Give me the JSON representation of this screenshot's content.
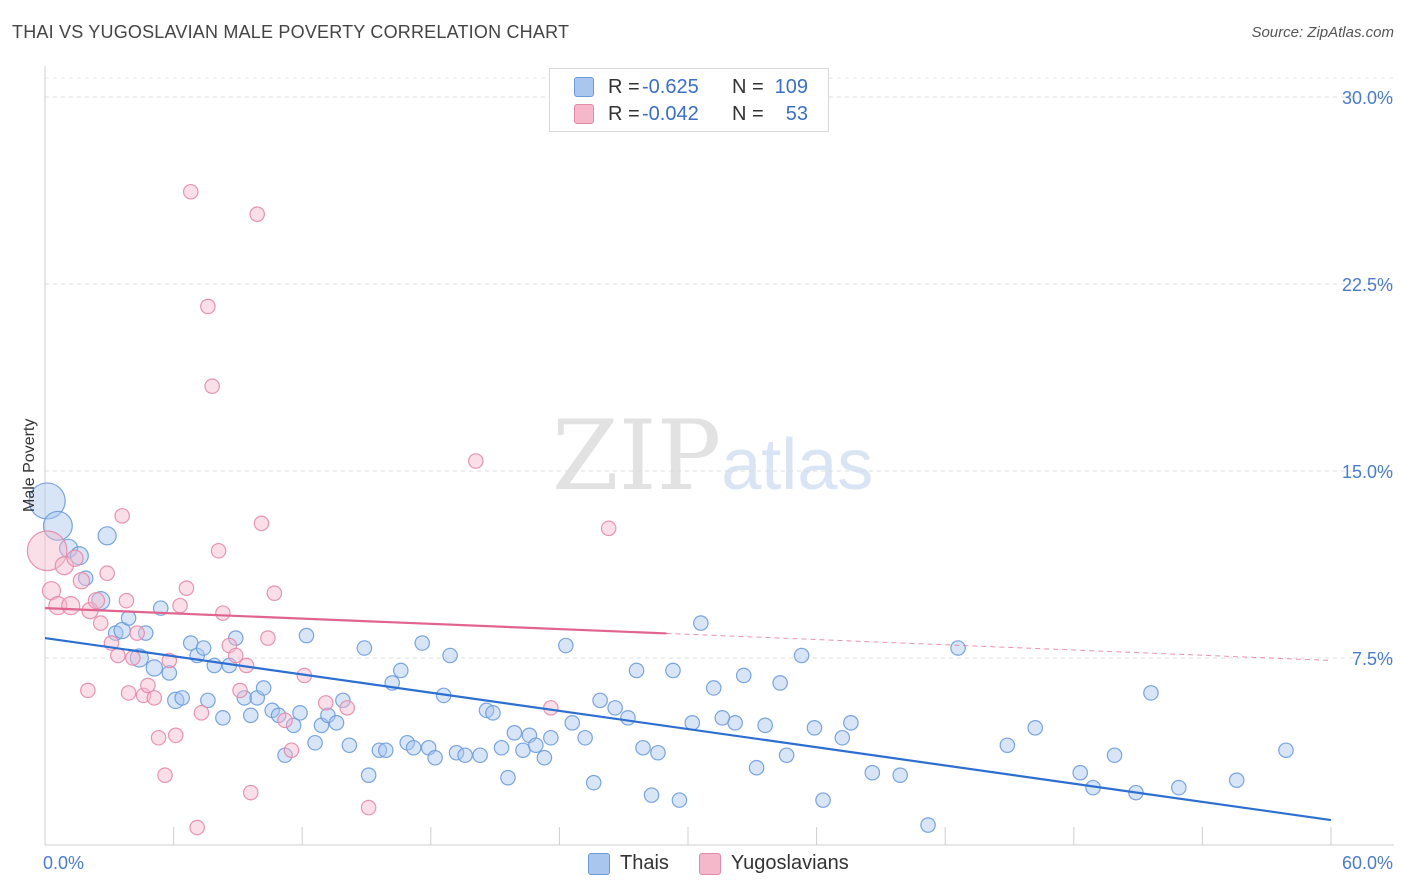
{
  "title": "THAI VS YUGOSLAVIAN MALE POVERTY CORRELATION CHART",
  "source": "Source: ZipAtlas.com",
  "watermark": {
    "zip": "ZIP",
    "atlas": "atlas"
  },
  "legend": {
    "rows": [
      {
        "r_label": "R =",
        "r_value": "-0.625",
        "n_label": "N =",
        "n_value": "109",
        "color": "#a9c6ee"
      },
      {
        "r_label": "R =",
        "r_value": "-0.042",
        "n_label": "N =",
        "n_value": "53",
        "color": "#f5b8cb"
      }
    ]
  },
  "bottom_legend": [
    {
      "label": "Thais",
      "color": "#a9c6ee"
    },
    {
      "label": "Yugoslavians",
      "color": "#f5b8cb"
    }
  ],
  "chart_data": {
    "type": "scatter",
    "xlabel": "",
    "ylabel": "Male Poverty",
    "xlim": [
      0,
      60
    ],
    "ylim": [
      0,
      30
    ],
    "x_tick_labels": [
      "0.0%",
      "60.0%"
    ],
    "y_ticks": [
      7.5,
      15.0,
      22.5,
      30.0
    ],
    "y_tick_labels": [
      "7.5%",
      "15.0%",
      "22.5%",
      "30.0%"
    ],
    "grid": true,
    "series": [
      {
        "name": "Thais",
        "color": "#a9c6ee",
        "stroke": "#6b9bdc",
        "trend": {
          "x": [
            0,
            60
          ],
          "y": [
            8.3,
            1.0
          ],
          "color": "#2c6fd1",
          "dashed_from": null
        },
        "points": [
          [
            0.1,
            13.8,
            2.0
          ],
          [
            0.6,
            12.8,
            1.6
          ],
          [
            1.1,
            11.9,
            1.0
          ],
          [
            1.6,
            11.6,
            1.0
          ],
          [
            1.9,
            10.7,
            0.8
          ],
          [
            2.6,
            9.8,
            1.0
          ],
          [
            2.9,
            12.4,
            1.0
          ],
          [
            3.3,
            8.5,
            0.8
          ],
          [
            3.6,
            8.6,
            0.9
          ],
          [
            3.9,
            9.1,
            0.8
          ],
          [
            4.4,
            7.5,
            1.0
          ],
          [
            4.7,
            8.5,
            0.8
          ],
          [
            5.1,
            7.1,
            0.9
          ],
          [
            5.4,
            9.5,
            0.8
          ],
          [
            5.8,
            6.9,
            0.8
          ],
          [
            6.1,
            5.8,
            0.9
          ],
          [
            6.4,
            5.9,
            0.8
          ],
          [
            6.8,
            8.1,
            0.8
          ],
          [
            7.1,
            7.6,
            0.8
          ],
          [
            7.4,
            7.9,
            0.8
          ],
          [
            7.6,
            5.8,
            0.8
          ],
          [
            7.9,
            7.2,
            0.8
          ],
          [
            8.3,
            5.1,
            0.8
          ],
          [
            8.6,
            7.2,
            0.8
          ],
          [
            8.9,
            8.3,
            0.8
          ],
          [
            9.3,
            5.9,
            0.8
          ],
          [
            9.6,
            5.2,
            0.8
          ],
          [
            9.9,
            5.9,
            0.8
          ],
          [
            10.2,
            6.3,
            0.8
          ],
          [
            10.6,
            5.4,
            0.8
          ],
          [
            10.9,
            5.2,
            0.8
          ],
          [
            11.2,
            3.6,
            0.8
          ],
          [
            11.6,
            4.8,
            0.8
          ],
          [
            11.9,
            5.3,
            0.8
          ],
          [
            12.2,
            8.4,
            0.8
          ],
          [
            12.6,
            4.1,
            0.8
          ],
          [
            12.9,
            4.8,
            0.8
          ],
          [
            13.2,
            5.2,
            0.8
          ],
          [
            13.6,
            4.9,
            0.8
          ],
          [
            13.9,
            5.8,
            0.8
          ],
          [
            14.2,
            4.0,
            0.8
          ],
          [
            14.9,
            7.9,
            0.8
          ],
          [
            15.1,
            2.8,
            0.8
          ],
          [
            15.6,
            3.8,
            0.8
          ],
          [
            15.9,
            3.8,
            0.8
          ],
          [
            16.2,
            6.5,
            0.8
          ],
          [
            16.6,
            7.0,
            0.8
          ],
          [
            16.9,
            4.1,
            0.8
          ],
          [
            17.2,
            3.9,
            0.8
          ],
          [
            17.6,
            8.1,
            0.8
          ],
          [
            17.9,
            3.9,
            0.8
          ],
          [
            18.2,
            3.5,
            0.8
          ],
          [
            18.6,
            6.0,
            0.8
          ],
          [
            18.9,
            7.6,
            0.8
          ],
          [
            19.2,
            3.7,
            0.8
          ],
          [
            19.6,
            3.6,
            0.8
          ],
          [
            20.3,
            3.6,
            0.8
          ],
          [
            20.6,
            5.4,
            0.8
          ],
          [
            20.9,
            5.3,
            0.8
          ],
          [
            21.3,
            3.9,
            0.8
          ],
          [
            21.6,
            2.7,
            0.8
          ],
          [
            21.9,
            4.5,
            0.8
          ],
          [
            22.3,
            3.8,
            0.8
          ],
          [
            22.6,
            4.4,
            0.8
          ],
          [
            22.9,
            4.0,
            0.8
          ],
          [
            23.3,
            3.5,
            0.8
          ],
          [
            23.6,
            4.3,
            0.8
          ],
          [
            24.3,
            8.0,
            0.8
          ],
          [
            24.6,
            4.9,
            0.8
          ],
          [
            25.2,
            4.3,
            0.8
          ],
          [
            25.6,
            2.5,
            0.8
          ],
          [
            25.9,
            5.8,
            0.8
          ],
          [
            26.6,
            5.5,
            0.8
          ],
          [
            27.2,
            5.1,
            0.8
          ],
          [
            27.6,
            7.0,
            0.8
          ],
          [
            27.9,
            3.9,
            0.8
          ],
          [
            28.3,
            2.0,
            0.8
          ],
          [
            28.6,
            3.7,
            0.8
          ],
          [
            29.3,
            7.0,
            0.8
          ],
          [
            29.6,
            1.8,
            0.8
          ],
          [
            30.2,
            4.9,
            0.8
          ],
          [
            30.6,
            8.9,
            0.8
          ],
          [
            31.2,
            6.3,
            0.8
          ],
          [
            31.6,
            5.1,
            0.8
          ],
          [
            32.2,
            4.9,
            0.8
          ],
          [
            32.6,
            6.8,
            0.8
          ],
          [
            33.2,
            3.1,
            0.8
          ],
          [
            33.6,
            4.8,
            0.8
          ],
          [
            34.3,
            6.5,
            0.8
          ],
          [
            34.6,
            3.6,
            0.8
          ],
          [
            35.3,
            7.6,
            0.8
          ],
          [
            35.9,
            4.7,
            0.8
          ],
          [
            36.3,
            1.8,
            0.8
          ],
          [
            37.2,
            4.3,
            0.8
          ],
          [
            37.6,
            4.9,
            0.8
          ],
          [
            38.6,
            2.9,
            0.8
          ],
          [
            39.9,
            2.8,
            0.8
          ],
          [
            41.2,
            0.8,
            0.8
          ],
          [
            42.6,
            7.9,
            0.8
          ],
          [
            44.9,
            4.0,
            0.8
          ],
          [
            46.2,
            4.7,
            0.8
          ],
          [
            48.3,
            2.9,
            0.8
          ],
          [
            49.9,
            3.6,
            0.8
          ],
          [
            50.9,
            2.1,
            0.8
          ],
          [
            51.6,
            6.1,
            0.8
          ],
          [
            52.9,
            2.3,
            0.8
          ],
          [
            55.6,
            2.6,
            0.8
          ],
          [
            57.9,
            3.8,
            0.8
          ],
          [
            48.9,
            2.3,
            0.8
          ]
        ]
      },
      {
        "name": "Yugoslavians",
        "color": "#f5b8cb",
        "stroke": "#e48aa8",
        "trend": {
          "x": [
            0,
            60
          ],
          "y": [
            9.5,
            7.4
          ],
          "color": "#e0648f",
          "dashed_from": 29
        },
        "points": [
          [
            0.1,
            11.8,
            2.2
          ],
          [
            0.3,
            10.2,
            1.0
          ],
          [
            0.6,
            9.6,
            1.0
          ],
          [
            0.9,
            11.2,
            1.0
          ],
          [
            1.2,
            9.6,
            1.0
          ],
          [
            1.4,
            11.5,
            0.9
          ],
          [
            1.7,
            10.6,
            0.9
          ],
          [
            2.1,
            9.4,
            0.9
          ],
          [
            2.4,
            9.8,
            0.9
          ],
          [
            2.6,
            8.9,
            0.8
          ],
          [
            2.9,
            10.9,
            0.8
          ],
          [
            3.1,
            8.1,
            0.8
          ],
          [
            3.4,
            7.6,
            0.8
          ],
          [
            3.6,
            13.2,
            0.8
          ],
          [
            3.8,
            9.8,
            0.8
          ],
          [
            4.1,
            7.5,
            0.8
          ],
          [
            4.3,
            8.5,
            0.8
          ],
          [
            4.6,
            6.0,
            0.8
          ],
          [
            4.8,
            6.4,
            0.8
          ],
          [
            5.1,
            5.9,
            0.8
          ],
          [
            5.3,
            4.3,
            0.8
          ],
          [
            5.6,
            2.8,
            0.8
          ],
          [
            5.8,
            7.4,
            0.8
          ],
          [
            6.1,
            4.4,
            0.8
          ],
          [
            6.3,
            9.6,
            0.8
          ],
          [
            6.6,
            10.3,
            0.8
          ],
          [
            6.8,
            26.2,
            0.8
          ],
          [
            7.1,
            0.7,
            0.8
          ],
          [
            7.3,
            5.3,
            0.8
          ],
          [
            7.6,
            21.6,
            0.8
          ],
          [
            7.8,
            18.4,
            0.8
          ],
          [
            8.1,
            11.8,
            0.8
          ],
          [
            8.3,
            9.3,
            0.8
          ],
          [
            8.6,
            8.0,
            0.8
          ],
          [
            8.9,
            7.6,
            0.8
          ],
          [
            9.1,
            6.2,
            0.8
          ],
          [
            9.4,
            7.2,
            0.8
          ],
          [
            9.6,
            2.1,
            0.8
          ],
          [
            9.9,
            25.3,
            0.8
          ],
          [
            10.1,
            12.9,
            0.8
          ],
          [
            10.4,
            8.3,
            0.8
          ],
          [
            10.7,
            10.1,
            0.8
          ],
          [
            11.2,
            5.0,
            0.8
          ],
          [
            11.5,
            3.8,
            0.8
          ],
          [
            12.1,
            6.8,
            0.8
          ],
          [
            13.1,
            5.7,
            0.8
          ],
          [
            14.1,
            5.5,
            0.8
          ],
          [
            15.1,
            1.5,
            0.8
          ],
          [
            20.1,
            15.4,
            0.8
          ],
          [
            23.6,
            5.5,
            0.8
          ],
          [
            26.3,
            12.7,
            0.8
          ],
          [
            2.0,
            6.2,
            0.8
          ],
          [
            3.9,
            6.1,
            0.8
          ]
        ]
      }
    ]
  }
}
